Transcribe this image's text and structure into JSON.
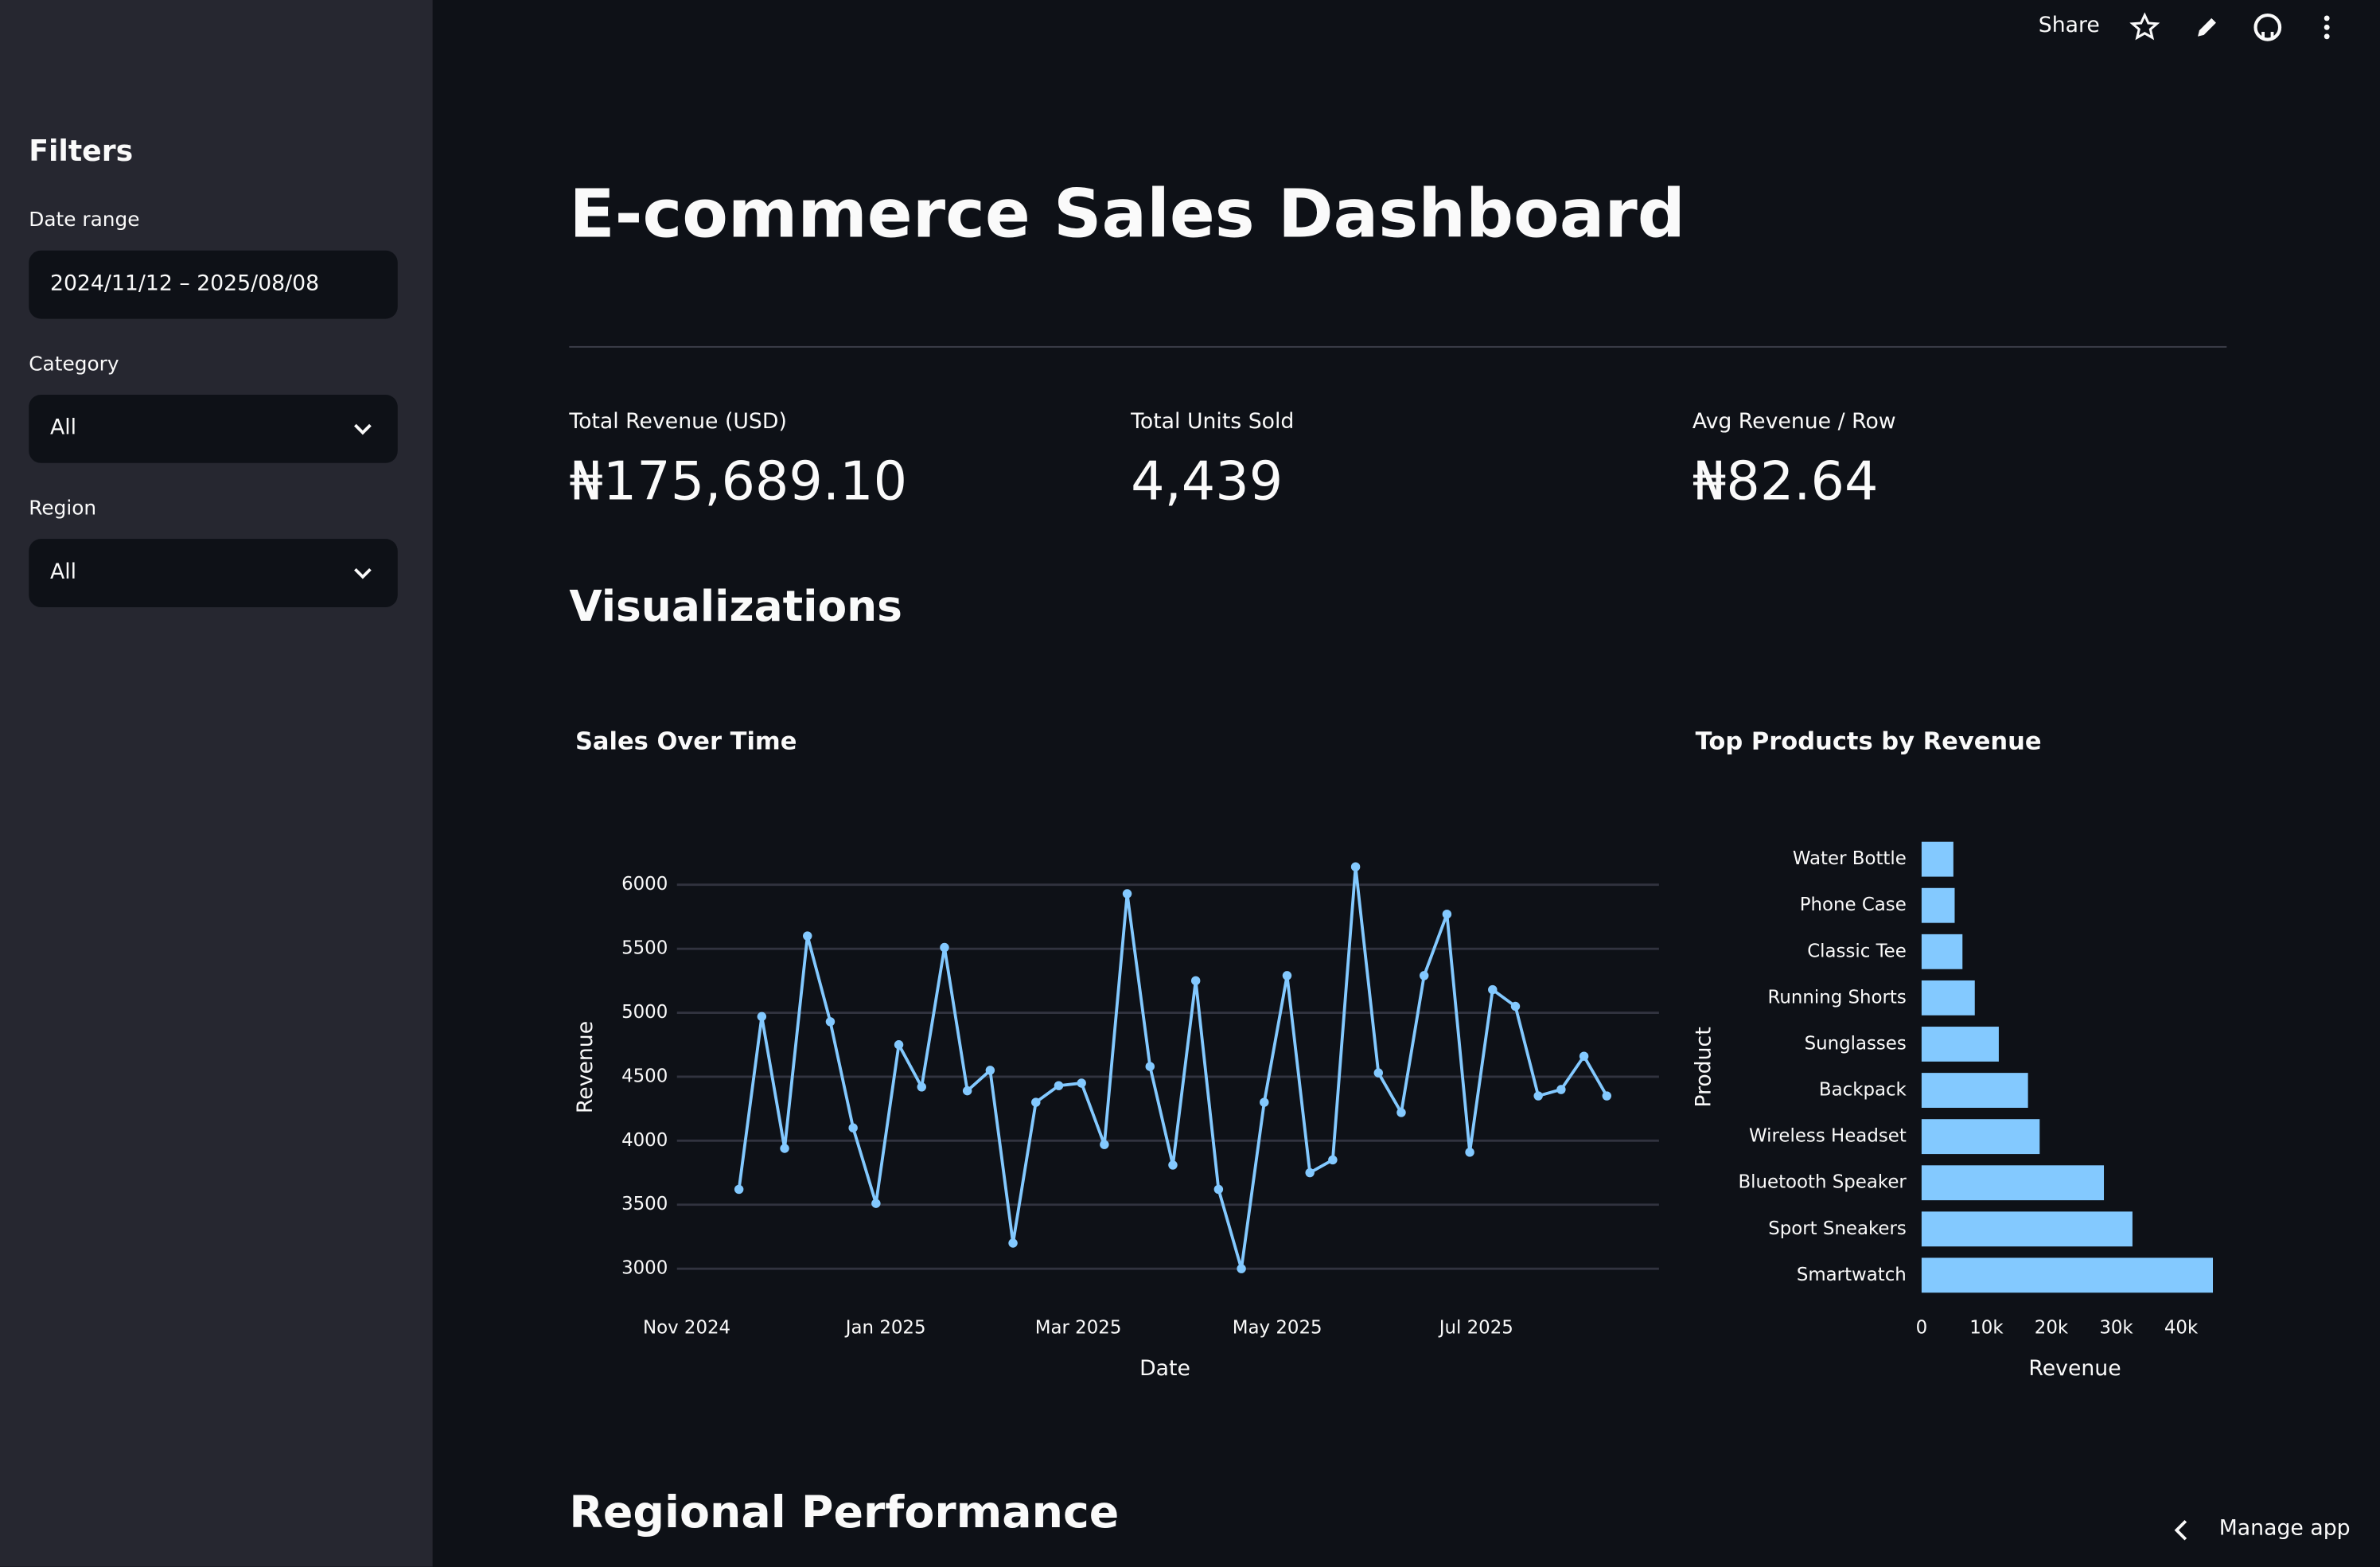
{
  "toolbar": {
    "share": "Share",
    "manage_app": "Manage app"
  },
  "sidebar": {
    "title": "Filters",
    "filters": [
      {
        "label": "Date range",
        "value": "2024/11/12 – 2025/08/08"
      },
      {
        "label": "Category",
        "value": "All"
      },
      {
        "label": "Region",
        "value": "All"
      }
    ]
  },
  "header": {
    "title": "E-commerce Sales Dashboard"
  },
  "metrics": [
    {
      "label": "Total Revenue (USD)",
      "value": "₦175,689.10"
    },
    {
      "label": "Total Units Sold",
      "value": "4,439"
    },
    {
      "label": "Avg Revenue / Row",
      "value": "₦82.64"
    }
  ],
  "sections": {
    "visualizations": "Visualizations",
    "regional": "Regional Performance"
  },
  "chart_data": [
    {
      "type": "line",
      "title": "Sales Over Time",
      "x_label": "Date",
      "y_label": "Revenue",
      "color": "#83c9ff",
      "markers": true,
      "grid": true,
      "x": [
        "2024-11-17",
        "2024-11-24",
        "2024-12-01",
        "2024-12-08",
        "2024-12-15",
        "2024-12-22",
        "2024-12-29",
        "2025-01-05",
        "2025-01-12",
        "2025-01-19",
        "2025-01-26",
        "2025-02-02",
        "2025-02-09",
        "2025-02-16",
        "2025-02-23",
        "2025-03-02",
        "2025-03-09",
        "2025-03-16",
        "2025-03-23",
        "2025-03-30",
        "2025-04-06",
        "2025-04-13",
        "2025-04-20",
        "2025-04-27",
        "2025-05-04",
        "2025-05-11",
        "2025-05-18",
        "2025-05-25",
        "2025-06-01",
        "2025-06-08",
        "2025-06-15",
        "2025-06-22",
        "2025-06-29",
        "2025-07-06",
        "2025-07-13",
        "2025-07-20",
        "2025-07-27",
        "2025-08-03",
        "2025-08-10"
      ],
      "values": [
        3620,
        4970,
        3940,
        5600,
        4930,
        4100,
        3510,
        4750,
        4420,
        5510,
        4390,
        4550,
        3200,
        4300,
        4430,
        4450,
        3970,
        5930,
        4580,
        3810,
        5250,
        3620,
        3000,
        4300,
        5290,
        3750,
        3850,
        6140,
        4530,
        4220,
        5290,
        5770,
        3910,
        5180,
        5050,
        4350,
        4400,
        4660,
        4350
      ],
      "xlim": [
        "2024-10-29",
        "2025-08-26"
      ],
      "xticks": [
        {
          "value": "2024-11-01",
          "label": "Nov 2024"
        },
        {
          "value": "2025-01-01",
          "label": "Jan 2025"
        },
        {
          "value": "2025-03-01",
          "label": "Mar 2025"
        },
        {
          "value": "2025-05-01",
          "label": "May 2025"
        },
        {
          "value": "2025-07-01",
          "label": "Jul 2025"
        }
      ],
      "ylim": [
        2890,
        6330
      ],
      "yticks": [
        3000,
        3500,
        4000,
        4500,
        5000,
        5500,
        6000
      ]
    },
    {
      "type": "bar",
      "orientation": "horizontal",
      "title": "Top Products by Revenue",
      "x_label": "Revenue",
      "y_label": "Product",
      "color": "#83c9ff",
      "categories": [
        "Water Bottle",
        "Phone Case",
        "Classic Tee",
        "Running Shorts",
        "Sunglasses",
        "Backpack",
        "Wireless Headset",
        "Bluetooth Speaker",
        "Sport Sneakers",
        "Smartwatch"
      ],
      "values": [
        4900,
        5100,
        6300,
        8200,
        11900,
        16400,
        18200,
        28100,
        32500,
        44900
      ],
      "xlim": [
        0,
        45500
      ],
      "xticks": [
        0,
        {
          "value": 10000,
          "label": "10k"
        },
        {
          "value": 20000,
          "label": "20k"
        },
        {
          "value": 30000,
          "label": "30k"
        },
        {
          "value": 40000,
          "label": "40k"
        }
      ]
    }
  ]
}
